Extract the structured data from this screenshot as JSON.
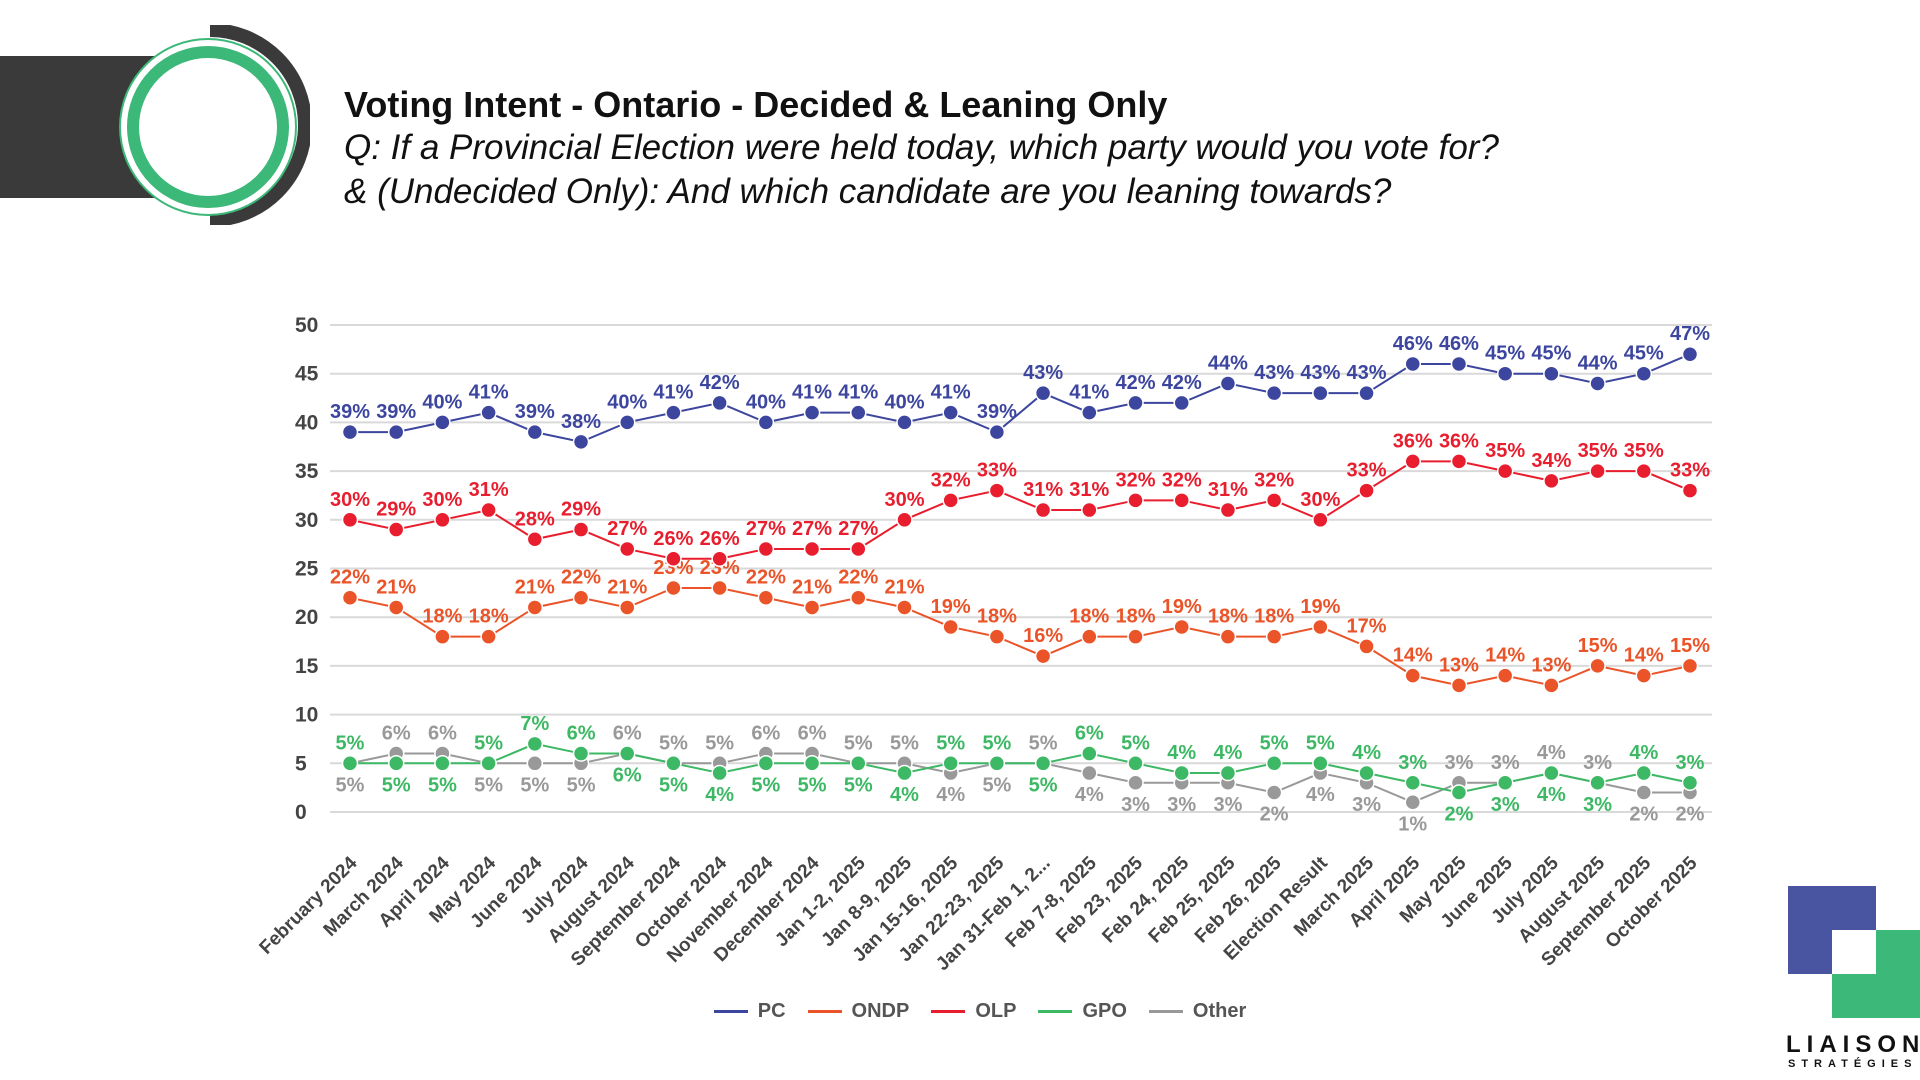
{
  "header": {
    "title": "Voting Intent - Ontario - Decided & Leaning Only",
    "subtitle_line1": "Q: If a Provincial Election were held today, which party would you vote for?",
    "subtitle_line2": "& (Undecided Only): And which candidate are you leaning towards?"
  },
  "brand": {
    "name": "LIAISON",
    "sub": "STRATÉGIES",
    "colors": {
      "primary": "#4a55a2",
      "secondary": "#3cb878"
    }
  },
  "chart_data": {
    "type": "line",
    "title": "",
    "xlabel": "",
    "ylabel": "",
    "ylim": [
      0,
      50
    ],
    "yticks": [
      0,
      5,
      10,
      15,
      20,
      25,
      30,
      35,
      40,
      45,
      50
    ],
    "grid": true,
    "legend_position": "bottom",
    "value_suffix": "%",
    "categories": [
      "February 2024",
      "March 2024",
      "April 2024",
      "May 2024",
      "June 2024",
      "July 2024",
      "August 2024",
      "September 2024",
      "October 2024",
      "November 2024",
      "December 2024",
      "Jan 1-2, 2025",
      "Jan 8-9, 2025",
      "Jan 15-16, 2025",
      "Jan 22-23, 2025",
      "Jan 31-Feb 1, 2...",
      "Feb 7-8, 2025",
      "Feb 23, 2025",
      "Feb 24, 2025",
      "Feb 25, 2025",
      "Feb 26, 2025",
      "Election Result",
      "March 2025",
      "April 2025",
      "May 2025",
      "June 2025",
      "July 2025",
      "August 2025",
      "September 2025",
      "October 2025"
    ],
    "series": [
      {
        "name": "PC",
        "color": "#3d469e",
        "values": [
          39,
          39,
          40,
          41,
          39,
          38,
          40,
          41,
          42,
          40,
          41,
          41,
          40,
          41,
          39,
          43,
          41,
          42,
          42,
          44,
          43,
          43,
          43,
          46,
          46,
          45,
          45,
          44,
          45,
          47
        ]
      },
      {
        "name": "ONDP",
        "color": "#ea5428",
        "values": [
          22,
          21,
          18,
          18,
          21,
          22,
          21,
          23,
          23,
          22,
          21,
          22,
          21,
          19,
          18,
          16,
          18,
          18,
          19,
          18,
          18,
          19,
          17,
          14,
          13,
          14,
          13,
          15,
          14,
          15
        ]
      },
      {
        "name": "OLP",
        "color": "#e81d2d",
        "values": [
          30,
          29,
          30,
          31,
          28,
          29,
          27,
          26,
          26,
          27,
          27,
          27,
          30,
          32,
          33,
          31,
          31,
          32,
          32,
          31,
          32,
          30,
          33,
          36,
          36,
          35,
          34,
          35,
          35,
          33
        ]
      },
      {
        "name": "GPO",
        "color": "#3db864",
        "values": [
          5,
          5,
          5,
          5,
          7,
          6,
          6,
          5,
          4,
          5,
          5,
          5,
          4,
          5,
          5,
          5,
          6,
          5,
          4,
          4,
          5,
          5,
          4,
          3,
          2,
          3,
          4,
          3,
          4,
          3
        ]
      },
      {
        "name": "Other",
        "color": "#999999",
        "values": [
          5,
          6,
          6,
          5,
          5,
          5,
          6,
          5,
          5,
          6,
          6,
          5,
          5,
          4,
          5,
          5,
          4,
          3,
          3,
          3,
          2,
          4,
          3,
          1,
          3,
          3,
          4,
          3,
          2,
          2
        ]
      }
    ]
  }
}
